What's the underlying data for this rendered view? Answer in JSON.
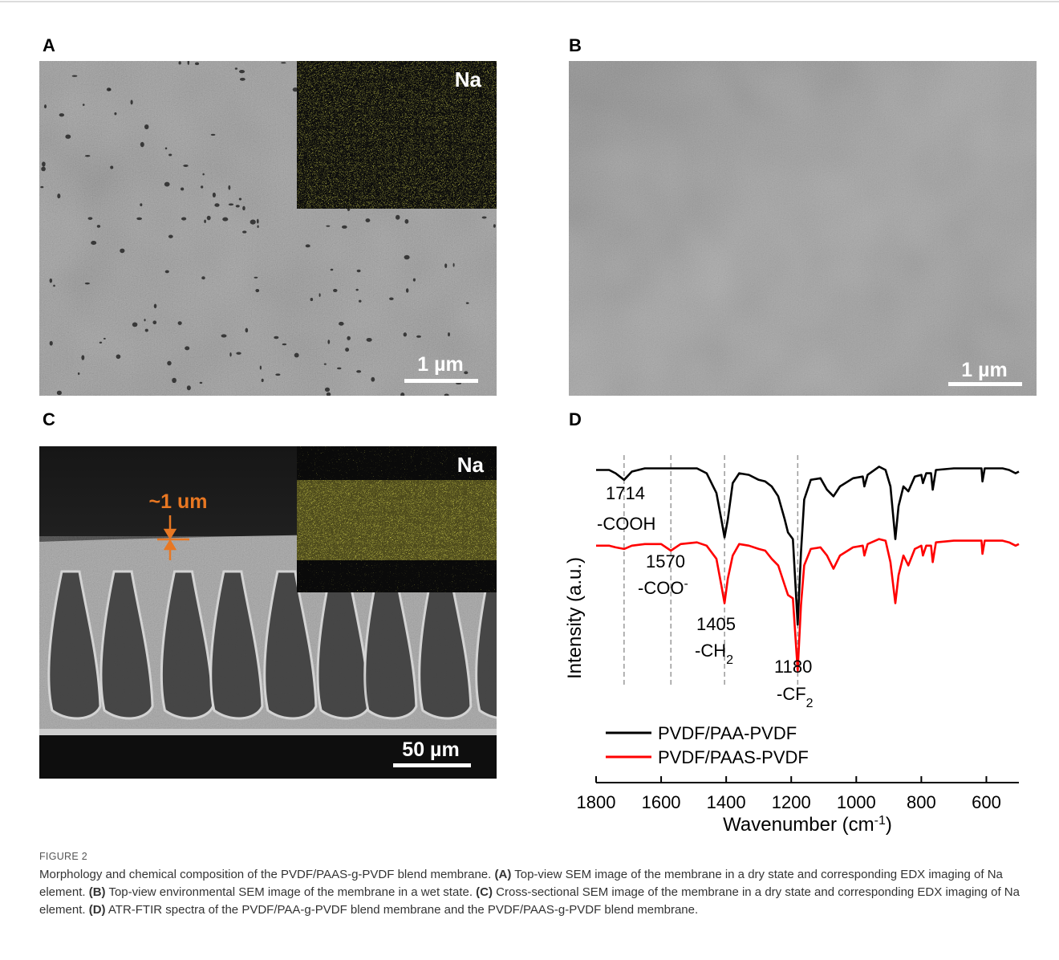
{
  "panels": [
    {
      "label": "A",
      "inset": "Na",
      "scale_bar": "1 µm"
    },
    {
      "label": "B",
      "scale_bar": "1 µm"
    },
    {
      "label": "C",
      "inset": "Na",
      "scale_bar": "50 µm",
      "annotation": "~1 um"
    },
    {
      "label": "D"
    }
  ],
  "chart_data": {
    "type": "line",
    "ylabel": "Intensity (a.u.)",
    "xlabel": "Wavenumber (cm",
    "xlabel_sup": "-1",
    "xlabel_end": ")",
    "xlim": [
      1800,
      500
    ],
    "xticks": [
      1800,
      1600,
      1400,
      1200,
      1000,
      800,
      600
    ],
    "ylim": [
      0,
      100
    ],
    "legend": "lower left",
    "x": [
      1800,
      1760,
      1740,
      1714,
      1690,
      1650,
      1600,
      1570,
      1540,
      1490,
      1460,
      1430,
      1415,
      1405,
      1395,
      1380,
      1360,
      1330,
      1300,
      1280,
      1260,
      1240,
      1220,
      1210,
      1195,
      1180,
      1170,
      1160,
      1140,
      1110,
      1090,
      1070,
      1050,
      1010,
      980,
      975,
      965,
      930,
      910,
      895,
      880,
      870,
      855,
      840,
      820,
      800,
      795,
      785,
      770,
      765,
      755,
      700,
      615,
      612,
      605,
      550,
      530,
      510,
      500
    ],
    "series": [
      {
        "name": "PVDF/PAA-PVDF",
        "color": "#000000",
        "values": [
          95,
          95,
          94,
          92,
          94.5,
          95.5,
          95.5,
          95.5,
          95.5,
          95.5,
          94,
          88,
          80,
          74.5,
          80,
          91,
          94,
          93.5,
          92,
          91.5,
          90,
          87,
          80,
          76,
          74,
          48,
          70,
          86,
          92,
          92.5,
          89,
          87,
          90,
          92.5,
          93,
          90,
          93.5,
          96,
          95,
          90,
          74,
          84,
          90,
          88.5,
          93,
          93.5,
          91,
          94,
          94,
          89,
          95,
          95.5,
          95.5,
          91.5,
          95.5,
          95.5,
          95,
          94,
          94.5
        ]
      },
      {
        "name": "PVDF/PAAS-PVDF",
        "color": "#ff0000",
        "values": [
          72,
          72,
          71.5,
          71,
          72,
          72.5,
          72.5,
          70.5,
          72.5,
          73,
          72,
          68,
          60,
          54.5,
          62,
          69,
          72.5,
          72,
          71,
          70.5,
          68,
          66,
          60,
          57,
          56,
          34,
          54,
          66,
          71,
          71.5,
          69,
          65,
          69,
          71.5,
          72,
          69,
          72.5,
          74,
          73.5,
          67,
          54.5,
          63,
          69,
          66,
          71,
          72,
          69,
          72,
          72,
          67,
          73,
          73.5,
          73.5,
          69.5,
          73.5,
          73.5,
          73,
          72,
          72.5
        ]
      }
    ],
    "annotations": [
      {
        "x": 1714,
        "group": "-COOH"
      },
      {
        "x": 1570,
        "group": "-COO",
        "group_sup": "-"
      },
      {
        "x": 1405,
        "group": "-CH",
        "group_sub": "2"
      },
      {
        "x": 1180,
        "group": "-CF",
        "group_sub": "2"
      }
    ]
  },
  "caption": {
    "figure": "FIGURE 2",
    "lead": "Morphology and chemical composition of the PVDF/PAAS-g-PVDF blend membrane.",
    "parts": [
      {
        "label": "(A)",
        "text": "Top-view SEM image of the membrane in a dry state and corresponding EDX imaging of Na element."
      },
      {
        "label": "(B)",
        "text": "Top-view environmental SEM image of the membrane in a wet state."
      },
      {
        "label": "(C)",
        "text": "Cross-sectional SEM image of the membrane in a dry state and corresponding EDX imaging of Na element."
      },
      {
        "label": "(D)",
        "text": "ATR-FTIR spectra of the PVDF/PAA-g-PVDF blend membrane and the PVDF/PAAS-g-PVDF blend membrane."
      }
    ]
  }
}
